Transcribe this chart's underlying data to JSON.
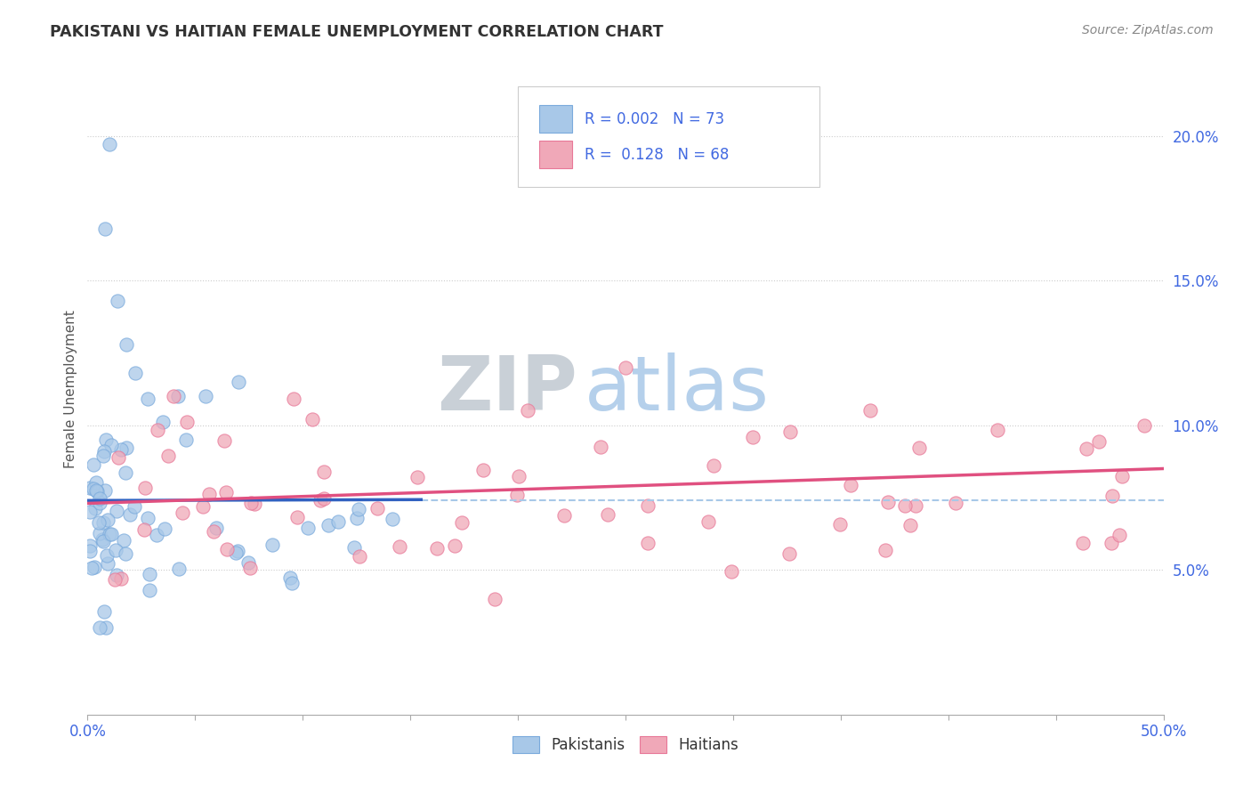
{
  "title": "PAKISTANI VS HAITIAN FEMALE UNEMPLOYMENT CORRELATION CHART",
  "source_text": "Source: ZipAtlas.com",
  "ylabel": "Female Unemployment",
  "xlim": [
    0.0,
    0.5
  ],
  "ylim": [
    0.0,
    0.225
  ],
  "pakistani_color": "#a8c8e8",
  "pakistani_edge_color": "#7aaadc",
  "haitian_color": "#f0a8b8",
  "haitian_edge_color": "#e87898",
  "pakistani_line_color": "#3060c0",
  "haitian_line_color": "#e05080",
  "dashed_line_color": "#a8c8e8",
  "background_color": "#ffffff",
  "title_color": "#333333",
  "axis_label_color": "#555555",
  "tick_color": "#4169E1",
  "source_color": "#888888",
  "grid_color": "#cccccc",
  "watermark_zip_color": "#c0c8d0",
  "watermark_atlas_color": "#a8c8e8",
  "legend_box_color": "#eeeeee",
  "legend_border_color": "#cccccc"
}
